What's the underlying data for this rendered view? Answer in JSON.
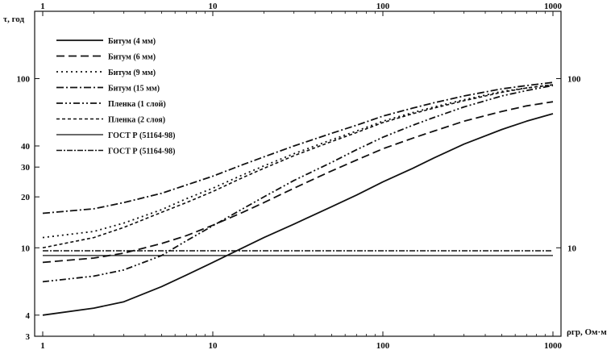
{
  "chart_data": {
    "type": "line",
    "xscale": "log",
    "yscale": "log",
    "xlim": [
      1,
      1000
    ],
    "ylim": [
      3,
      250
    ],
    "xticks": [
      1,
      10,
      100,
      1000
    ],
    "xtick_labels": [
      "1",
      "10",
      "100",
      "1000"
    ],
    "yticks_left": [
      3,
      4,
      10,
      20,
      30,
      40,
      100
    ],
    "ytick_labels_left": [
      "3",
      "4",
      "10",
      "20",
      "30",
      "40",
      "100"
    ],
    "yticks_right": [
      10,
      100
    ],
    "ytick_labels_right": [
      "10",
      "100"
    ],
    "ylabel": "τ, год",
    "xlabel": "ρгр, Ом·м",
    "legend_position": "top-left",
    "grid": false,
    "series": [
      {
        "name": "Битум (4 мм)",
        "style": "solid",
        "x": [
          1,
          2,
          3,
          5,
          7,
          10,
          15,
          20,
          30,
          50,
          70,
          100,
          150,
          200,
          300,
          500,
          700,
          1000
        ],
        "y": [
          4.0,
          4.4,
          4.8,
          5.9,
          6.9,
          8.2,
          10.0,
          11.5,
          13.8,
          17.5,
          20.5,
          24.5,
          29.5,
          34,
          41,
          50,
          56,
          62
        ]
      },
      {
        "name": "Битум (6 мм)",
        "style": "dash",
        "x": [
          1,
          2,
          3,
          5,
          7,
          10,
          15,
          20,
          30,
          50,
          70,
          100,
          150,
          200,
          300,
          500,
          700,
          1000
        ],
        "y": [
          8.2,
          8.7,
          9.3,
          10.6,
          11.8,
          13.6,
          16.2,
          18.5,
          22.5,
          28.5,
          33,
          38.5,
          44.5,
          49,
          56,
          64,
          69,
          73
        ]
      },
      {
        "name": "Битум (9 мм)",
        "style": "dot",
        "x": [
          1,
          2,
          3,
          5,
          7,
          10,
          15,
          20,
          30,
          50,
          70,
          100,
          150,
          200,
          300,
          500,
          700,
          1000
        ],
        "y": [
          11.5,
          12.5,
          14,
          16.8,
          19.5,
          22.5,
          27,
          30.5,
          36,
          43.5,
          49,
          56,
          63,
          68,
          75,
          84,
          88,
          92
        ]
      },
      {
        "name": "Битум (15 мм)",
        "style": "dashdot",
        "x": [
          1,
          2,
          3,
          5,
          7,
          10,
          15,
          20,
          30,
          50,
          70,
          100,
          150,
          200,
          300,
          500,
          700,
          1000
        ],
        "y": [
          16,
          17,
          18.5,
          21,
          23.5,
          26.5,
          31,
          34.5,
          40,
          47.5,
          53,
          60,
          67,
          72,
          79,
          87,
          91,
          95
        ]
      },
      {
        "name": "Пленка (1 слой)",
        "style": "dashdotdot",
        "x": [
          1,
          2,
          3,
          5,
          7,
          10,
          15,
          20,
          30,
          50,
          70,
          100,
          150,
          200,
          300,
          500,
          700,
          1000
        ],
        "y": [
          6.3,
          6.8,
          7.4,
          9.0,
          11.0,
          13.5,
          17,
          20,
          25,
          32,
          38,
          45,
          53,
          59,
          68,
          79,
          85,
          91
        ]
      },
      {
        "name": "Пленка (2 слоя)",
        "style": "shortdash",
        "x": [
          1,
          2,
          3,
          5,
          7,
          10,
          15,
          20,
          30,
          50,
          70,
          100,
          150,
          200,
          300,
          500,
          700,
          1000
        ],
        "y": [
          10,
          11.5,
          13.2,
          16.2,
          18.5,
          21.5,
          26,
          29.5,
          35,
          42.5,
          48,
          55,
          62,
          67,
          74,
          83,
          88,
          92
        ]
      },
      {
        "name": "ГОСТ Р (51164-98)",
        "style": "solid-thin",
        "x": [
          1,
          1000
        ],
        "y": [
          9.0,
          9.0
        ]
      },
      {
        "name": "ГОСТ Р (51164-98)",
        "style": "dashdot-thin",
        "x": [
          1,
          1000
        ],
        "y": [
          9.6,
          9.6
        ]
      }
    ]
  }
}
